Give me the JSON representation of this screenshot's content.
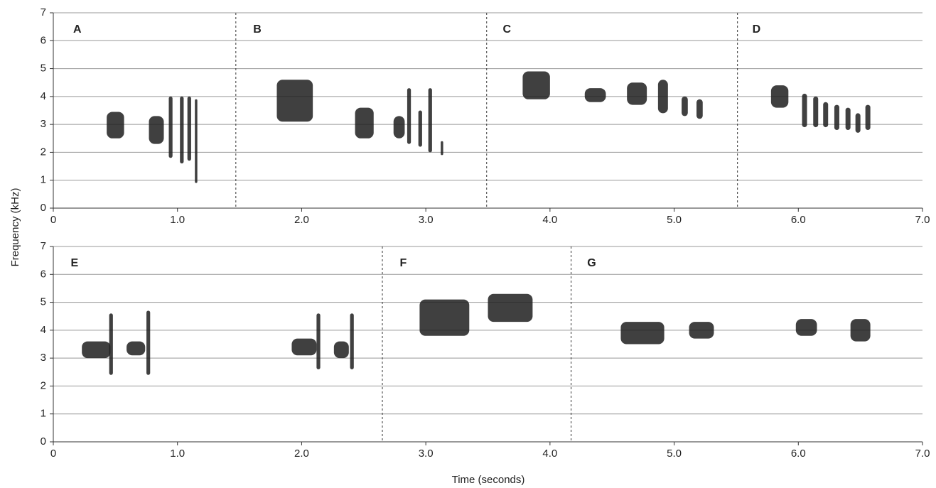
{
  "chart_data": {
    "type": "spectrogram",
    "xlabel": "Time (seconds)",
    "ylabel": "Frequency (kHz)",
    "color": "#1e1e1e",
    "panels": [
      {
        "xlim": [
          0,
          7
        ],
        "ylim": [
          0,
          7
        ],
        "xticks": [
          0,
          {
            "value": 1,
            "label": "1.0"
          },
          {
            "value": 2,
            "label": "2.0"
          },
          {
            "value": 3,
            "label": "3.0"
          },
          {
            "value": 4,
            "label": "4.0"
          },
          {
            "value": 5,
            "label": "5.0"
          },
          {
            "value": 6,
            "label": "6.0"
          },
          {
            "value": 7,
            "label": "7.0"
          }
        ],
        "yticks": [
          0,
          1,
          2,
          3,
          4,
          5,
          6,
          7
        ],
        "grid": true,
        "dividers": [
          1.47,
          3.49,
          5.51
        ],
        "sections": [
          {
            "label": "A",
            "x": 0.16
          },
          {
            "label": "B",
            "x": 1.61
          },
          {
            "label": "C",
            "x": 3.62
          },
          {
            "label": "D",
            "x": 5.63
          }
        ],
        "syllables": [
          [
            0.43,
            0.57,
            2.5,
            3.45
          ],
          [
            0.77,
            0.89,
            2.3,
            3.3
          ],
          [
            0.93,
            0.96,
            1.8,
            4.0
          ],
          [
            1.02,
            1.05,
            1.6,
            4.0
          ],
          [
            1.08,
            1.11,
            1.7,
            4.0
          ],
          [
            1.14,
            1.16,
            0.9,
            3.9
          ],
          [
            1.8,
            2.09,
            3.1,
            4.6
          ],
          [
            2.43,
            2.58,
            2.5,
            3.6
          ],
          [
            2.74,
            2.83,
            2.5,
            3.3
          ],
          [
            2.85,
            2.88,
            2.3,
            4.3
          ],
          [
            2.94,
            2.97,
            2.2,
            3.5
          ],
          [
            3.02,
            3.05,
            2.0,
            4.3
          ],
          [
            3.12,
            3.14,
            1.9,
            2.4
          ],
          [
            3.78,
            4.0,
            3.9,
            4.9
          ],
          [
            4.28,
            4.45,
            3.8,
            4.3
          ],
          [
            4.62,
            4.78,
            3.7,
            4.5
          ],
          [
            4.87,
            4.95,
            3.4,
            4.6
          ],
          [
            5.06,
            5.11,
            3.3,
            4.0
          ],
          [
            5.18,
            5.23,
            3.2,
            3.9
          ],
          [
            5.78,
            5.92,
            3.6,
            4.4
          ],
          [
            6.03,
            6.07,
            2.9,
            4.1
          ],
          [
            6.12,
            6.16,
            2.9,
            4.0
          ],
          [
            6.2,
            6.24,
            2.9,
            3.8
          ],
          [
            6.29,
            6.33,
            2.8,
            3.7
          ],
          [
            6.38,
            6.42,
            2.8,
            3.6
          ],
          [
            6.46,
            6.5,
            2.7,
            3.4
          ],
          [
            6.54,
            6.58,
            2.8,
            3.7
          ]
        ]
      },
      {
        "xlim": [
          0,
          7
        ],
        "ylim": [
          0,
          7
        ],
        "xticks": [
          0,
          {
            "value": 1,
            "label": "1.0"
          },
          {
            "value": 2,
            "label": "2.0"
          },
          {
            "value": 3,
            "label": "3.0"
          },
          {
            "value": 4,
            "label": "4.0"
          },
          {
            "value": 5,
            "label": "5.0"
          },
          {
            "value": 6,
            "label": "6.0"
          },
          {
            "value": 7,
            "label": "7.0"
          }
        ],
        "yticks": [
          0,
          1,
          2,
          3,
          4,
          5,
          6,
          7
        ],
        "grid": true,
        "dividers": [
          2.65,
          4.17
        ],
        "sections": [
          {
            "label": "E",
            "x": 0.14
          },
          {
            "label": "F",
            "x": 2.79
          },
          {
            "label": "G",
            "x": 4.3
          }
        ],
        "syllables": [
          [
            0.23,
            0.46,
            3.0,
            3.6
          ],
          [
            0.45,
            0.48,
            2.4,
            4.6
          ],
          [
            0.59,
            0.74,
            3.1,
            3.6
          ],
          [
            0.75,
            0.78,
            2.4,
            4.7
          ],
          [
            1.92,
            2.12,
            3.1,
            3.7
          ],
          [
            2.12,
            2.15,
            2.6,
            4.6
          ],
          [
            2.26,
            2.38,
            3.0,
            3.6
          ],
          [
            2.39,
            2.42,
            2.6,
            4.6
          ],
          [
            2.95,
            3.35,
            3.8,
            5.1
          ],
          [
            3.5,
            3.86,
            4.3,
            5.3
          ],
          [
            4.57,
            4.92,
            3.5,
            4.3
          ],
          [
            5.12,
            5.32,
            3.7,
            4.3
          ],
          [
            5.98,
            6.15,
            3.8,
            4.4
          ],
          [
            6.42,
            6.58,
            3.6,
            4.4
          ]
        ]
      }
    ]
  }
}
